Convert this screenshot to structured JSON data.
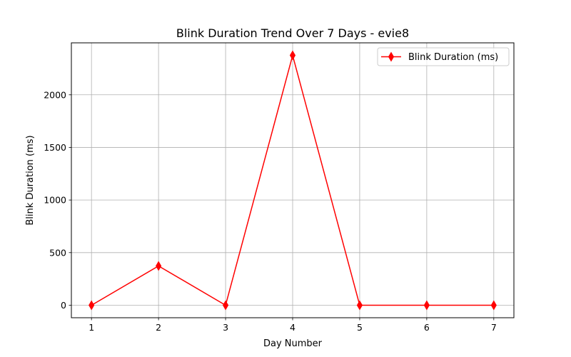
{
  "chart_data": {
    "type": "line",
    "title": "Blink Duration Trend Over 7 Days - evie8",
    "xlabel": "Day Number",
    "ylabel": "Blink Duration (ms)",
    "x": [
      1,
      2,
      3,
      4,
      5,
      6,
      7
    ],
    "series": [
      {
        "name": "Blink Duration (ms)",
        "values": [
          0,
          373,
          0,
          2375,
          0,
          0,
          0
        ],
        "color": "#ff0000",
        "marker": "thin-diamond"
      }
    ],
    "xlim": [
      0.7,
      7.3
    ],
    "ylim": [
      -119,
      2494
    ],
    "xticks": [
      "1",
      "2",
      "3",
      "4",
      "5",
      "6",
      "7"
    ],
    "yticks": [
      "0",
      "500",
      "1000",
      "1500",
      "2000"
    ],
    "grid": true,
    "legend_position": "top-right"
  }
}
